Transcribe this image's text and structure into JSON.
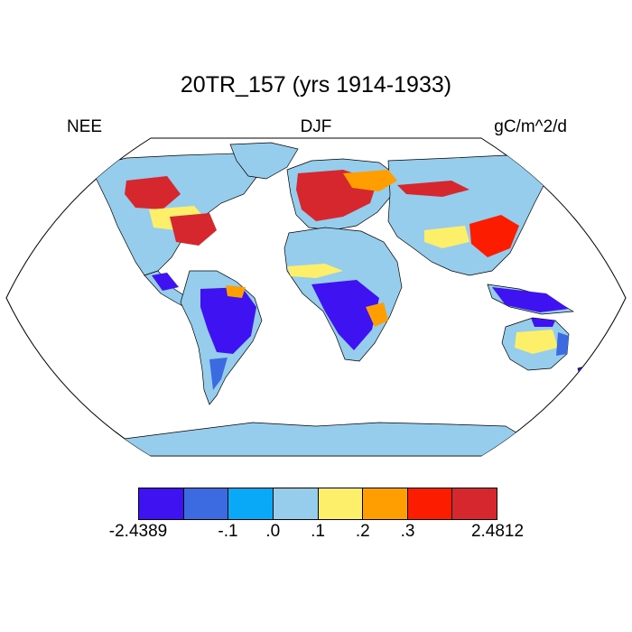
{
  "title": "20TR_157 (yrs 1914-1933)",
  "left_label": "NEE",
  "center_label": "DJF",
  "right_label": "gC/m^2/d",
  "colorbar": {
    "colors": [
      "#3f12f2",
      "#3c6ae0",
      "#0aa9f7",
      "#96ccec",
      "#fdef6a",
      "#fe9e00",
      "#fc1d00",
      "#d6262e"
    ],
    "labels": [
      "-2.4389",
      "-.1",
      ".0",
      ".1",
      ".2",
      ".3",
      "2.4812"
    ]
  },
  "colors": {
    "ocean": "#ffffff",
    "land_base": "#96ccec",
    "coast": "#000000"
  }
}
